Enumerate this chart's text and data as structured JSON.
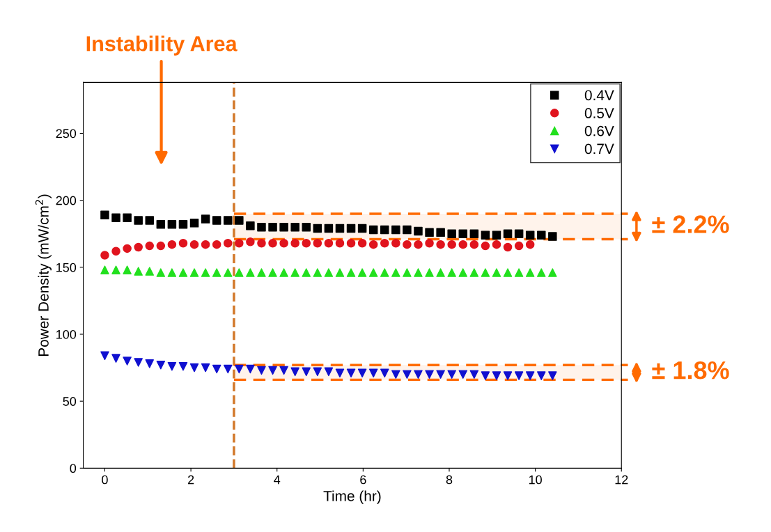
{
  "chart_data": {
    "type": "scatter",
    "xlabel": "Time (hr)",
    "ylabel": "Power Density (mW/cm$^{2}$)",
    "xlim": [
      -0.5,
      12
    ],
    "ylim": [
      0,
      288
    ],
    "xticks": [
      0,
      2,
      4,
      6,
      8,
      10,
      12
    ],
    "yticks": [
      0,
      50,
      100,
      150,
      200,
      250
    ],
    "grid": false,
    "legend": "top right",
    "x": [
      0,
      0.26,
      0.52,
      0.78,
      1.04,
      1.3,
      1.56,
      1.82,
      2.08,
      2.34,
      2.6,
      2.86,
      3.12,
      3.38,
      3.64,
      3.9,
      4.16,
      4.42,
      4.68,
      4.94,
      5.2,
      5.46,
      5.72,
      5.98,
      6.24,
      6.5,
      6.76,
      7.02,
      7.28,
      7.54,
      7.8,
      8.06,
      8.32,
      8.58,
      8.84,
      9.1,
      9.36,
      9.62,
      9.88,
      10.14,
      10.4
    ],
    "series": [
      {
        "name": "0.4V",
        "color": "#000000",
        "marker": "square",
        "values": [
          189,
          187,
          187,
          185,
          185,
          182,
          182,
          182,
          183,
          186,
          185,
          185,
          185,
          181,
          180,
          180,
          180,
          180,
          180,
          179,
          179,
          179,
          179,
          179,
          178,
          178,
          178,
          178,
          177,
          176,
          176,
          175,
          175,
          175,
          174,
          174,
          175,
          175,
          174,
          174,
          173
        ]
      },
      {
        "name": "0.5V",
        "color": "#e0141e",
        "marker": "circle",
        "x": [
          0,
          0.26,
          0.52,
          0.78,
          1.04,
          1.3,
          1.56,
          1.82,
          2.08,
          2.34,
          2.6,
          2.86,
          3.12,
          3.38,
          3.64,
          3.9,
          4.16,
          4.42,
          4.68,
          4.94,
          5.2,
          5.46,
          5.72,
          5.98,
          6.24,
          6.5,
          6.76,
          7.02,
          7.28,
          7.54,
          7.8,
          8.06,
          8.32,
          8.58,
          8.84,
          9.1,
          9.36,
          9.62,
          9.88
        ],
        "values": [
          159,
          162,
          164,
          165,
          166,
          166,
          167,
          168,
          167,
          167,
          167,
          168,
          168,
          169,
          168,
          168,
          168,
          168,
          168,
          168,
          168,
          168,
          168,
          168,
          167,
          168,
          168,
          167,
          167,
          168,
          167,
          167,
          167,
          167,
          166,
          167,
          165,
          166,
          167
        ]
      },
      {
        "name": "0.6V",
        "color": "#22e01e",
        "marker": "triangle",
        "values": [
          148,
          148,
          148,
          147,
          147,
          146,
          146,
          146,
          146,
          146,
          146,
          146,
          146,
          146,
          146,
          146,
          146,
          146,
          146,
          146,
          146,
          146,
          146,
          146,
          146,
          146,
          146,
          146,
          146,
          146,
          146,
          146,
          146,
          146,
          146,
          146,
          146,
          146,
          146,
          146,
          146
        ]
      },
      {
        "name": "0.7V",
        "color": "#1010d0",
        "marker": "triangle_down",
        "values": [
          84,
          82,
          80,
          79,
          78,
          77,
          76,
          76,
          75,
          75,
          74,
          74,
          74,
          74,
          73,
          73,
          73,
          72,
          72,
          72,
          72,
          71,
          71,
          71,
          71,
          71,
          70,
          70,
          70,
          70,
          70,
          70,
          70,
          70,
          69,
          69,
          69,
          69,
          69,
          69,
          69
        ]
      }
    ],
    "ref_lines": [
      {
        "axis": "x",
        "value": 3,
        "color": "#d2782a",
        "line_style": "dashed"
      }
    ],
    "bands": [
      {
        "axis": "y",
        "from": 171,
        "to": 190,
        "label": "± 2.2%",
        "color": "#ff6a00"
      },
      {
        "axis": "y",
        "from": 66,
        "to": 77,
        "label": "± 1.8%",
        "color": "#ff6a00"
      }
    ],
    "annotations": [
      "Instability Area"
    ]
  }
}
